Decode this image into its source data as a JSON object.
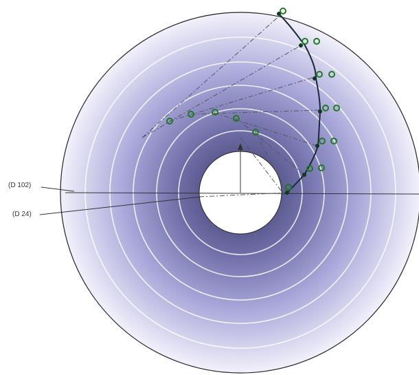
{
  "dimensions": {
    "outer_label": "(D 102)",
    "inner_label": "(D 24)"
  },
  "colors": {
    "disk_center": "#3b3a66",
    "disk_mid": "#9c9bd1",
    "disk_edge": "#f2f1fb",
    "rings": "#ffffff",
    "outline": "#222222",
    "curve": "#1a2a3a",
    "point_marker": "#1f7a1f",
    "construction_lines": "#555566"
  },
  "icons": {
    "point_marker": "green-circle-icon",
    "axis_arrow": "arrow-up-icon"
  }
}
